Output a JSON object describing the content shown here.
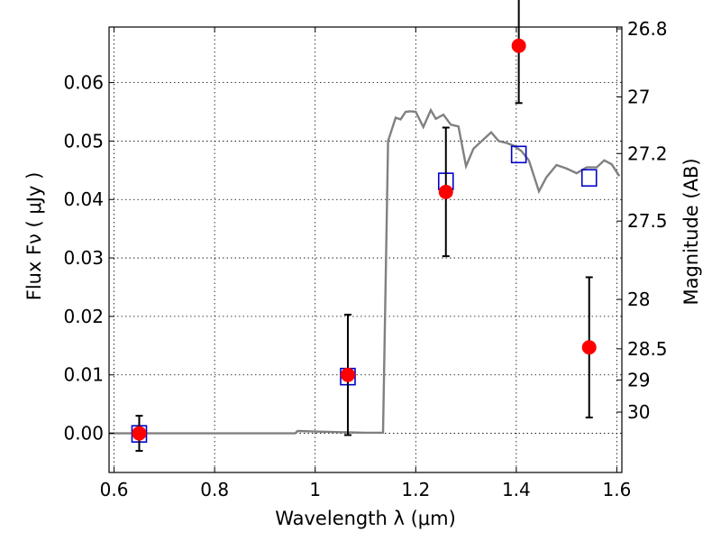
{
  "chart_data": {
    "type": "scatter",
    "xlabel": "Wavelength  λ (μm)",
    "ylabel": "Flux  Fν  ( μJy )",
    "y2label": "Magnitude (AB)",
    "xlim": [
      0.59,
      1.61
    ],
    "ylim": [
      -0.0067,
      0.0695
    ],
    "grid": true,
    "x_ticks": [
      0.6,
      0.8,
      1.0,
      1.2,
      1.4,
      1.6
    ],
    "x_tick_labels": [
      "0.6",
      "0.8",
      "1",
      "1.2",
      "1.4",
      "1.6"
    ],
    "y_ticks": [
      0.0,
      0.01,
      0.02,
      0.03,
      0.04,
      0.05,
      0.06
    ],
    "y_tick_labels": [
      "0.00",
      "0.01",
      "0.02",
      "0.03",
      "0.04",
      "0.05",
      "0.06"
    ],
    "y2_ticks": [
      {
        "label": "26.8",
        "mag": 26.8
      },
      {
        "label": "27",
        "mag": 27.0
      },
      {
        "label": "27.2",
        "mag": 27.2
      },
      {
        "label": "27.5",
        "mag": 27.5
      },
      {
        "label": "28",
        "mag": 28.0
      },
      {
        "label": "28.5",
        "mag": 28.5
      },
      {
        "label": "29",
        "mag": 29.0
      },
      {
        "label": "30",
        "mag": 30.0
      }
    ],
    "colors": {
      "model": "#808080",
      "observed": "#ff0000",
      "synthetic": "#0000cc",
      "errorbar": "#000000"
    },
    "series": [
      {
        "kind": "line",
        "x": [
          0.59,
          0.96,
          0.965,
          1.0,
          1.05,
          1.1,
          1.135,
          1.145,
          1.16,
          1.17,
          1.18,
          1.19,
          1.2,
          1.215,
          1.23,
          1.24,
          1.255,
          1.27,
          1.285,
          1.3,
          1.315,
          1.335,
          1.35,
          1.365,
          1.38,
          1.395,
          1.41,
          1.425,
          1.445,
          1.46,
          1.48,
          1.5,
          1.52,
          1.54,
          1.56,
          1.575,
          1.59,
          1.605
        ],
        "y": [
          0.0,
          0.0,
          0.0004,
          0.0003,
          0.0002,
          0.0001,
          0.0001,
          0.05,
          0.054,
          0.0537,
          0.055,
          0.0551,
          0.055,
          0.0524,
          0.0553,
          0.0538,
          0.0545,
          0.0528,
          0.0525,
          0.0457,
          0.0487,
          0.0503,
          0.0515,
          0.05,
          0.0497,
          0.0492,
          0.0483,
          0.0467,
          0.0414,
          0.0438,
          0.0459,
          0.0453,
          0.0445,
          0.0455,
          0.0455,
          0.0467,
          0.046,
          0.044
        ]
      },
      {
        "kind": "points",
        "marker": "circle",
        "x": [
          0.65,
          1.065,
          1.26,
          1.405,
          1.545
        ],
        "y": [
          0.0,
          0.01,
          0.0413,
          0.0663,
          0.0147
        ],
        "yerr": [
          0.003,
          0.0103,
          0.011,
          0.0098,
          0.012
        ]
      },
      {
        "kind": "points",
        "marker": "square",
        "x": [
          0.65,
          1.065,
          1.26,
          1.405,
          1.545
        ],
        "y": [
          -0.0001,
          0.0097,
          0.0431,
          0.0477,
          0.0437
        ]
      }
    ]
  }
}
